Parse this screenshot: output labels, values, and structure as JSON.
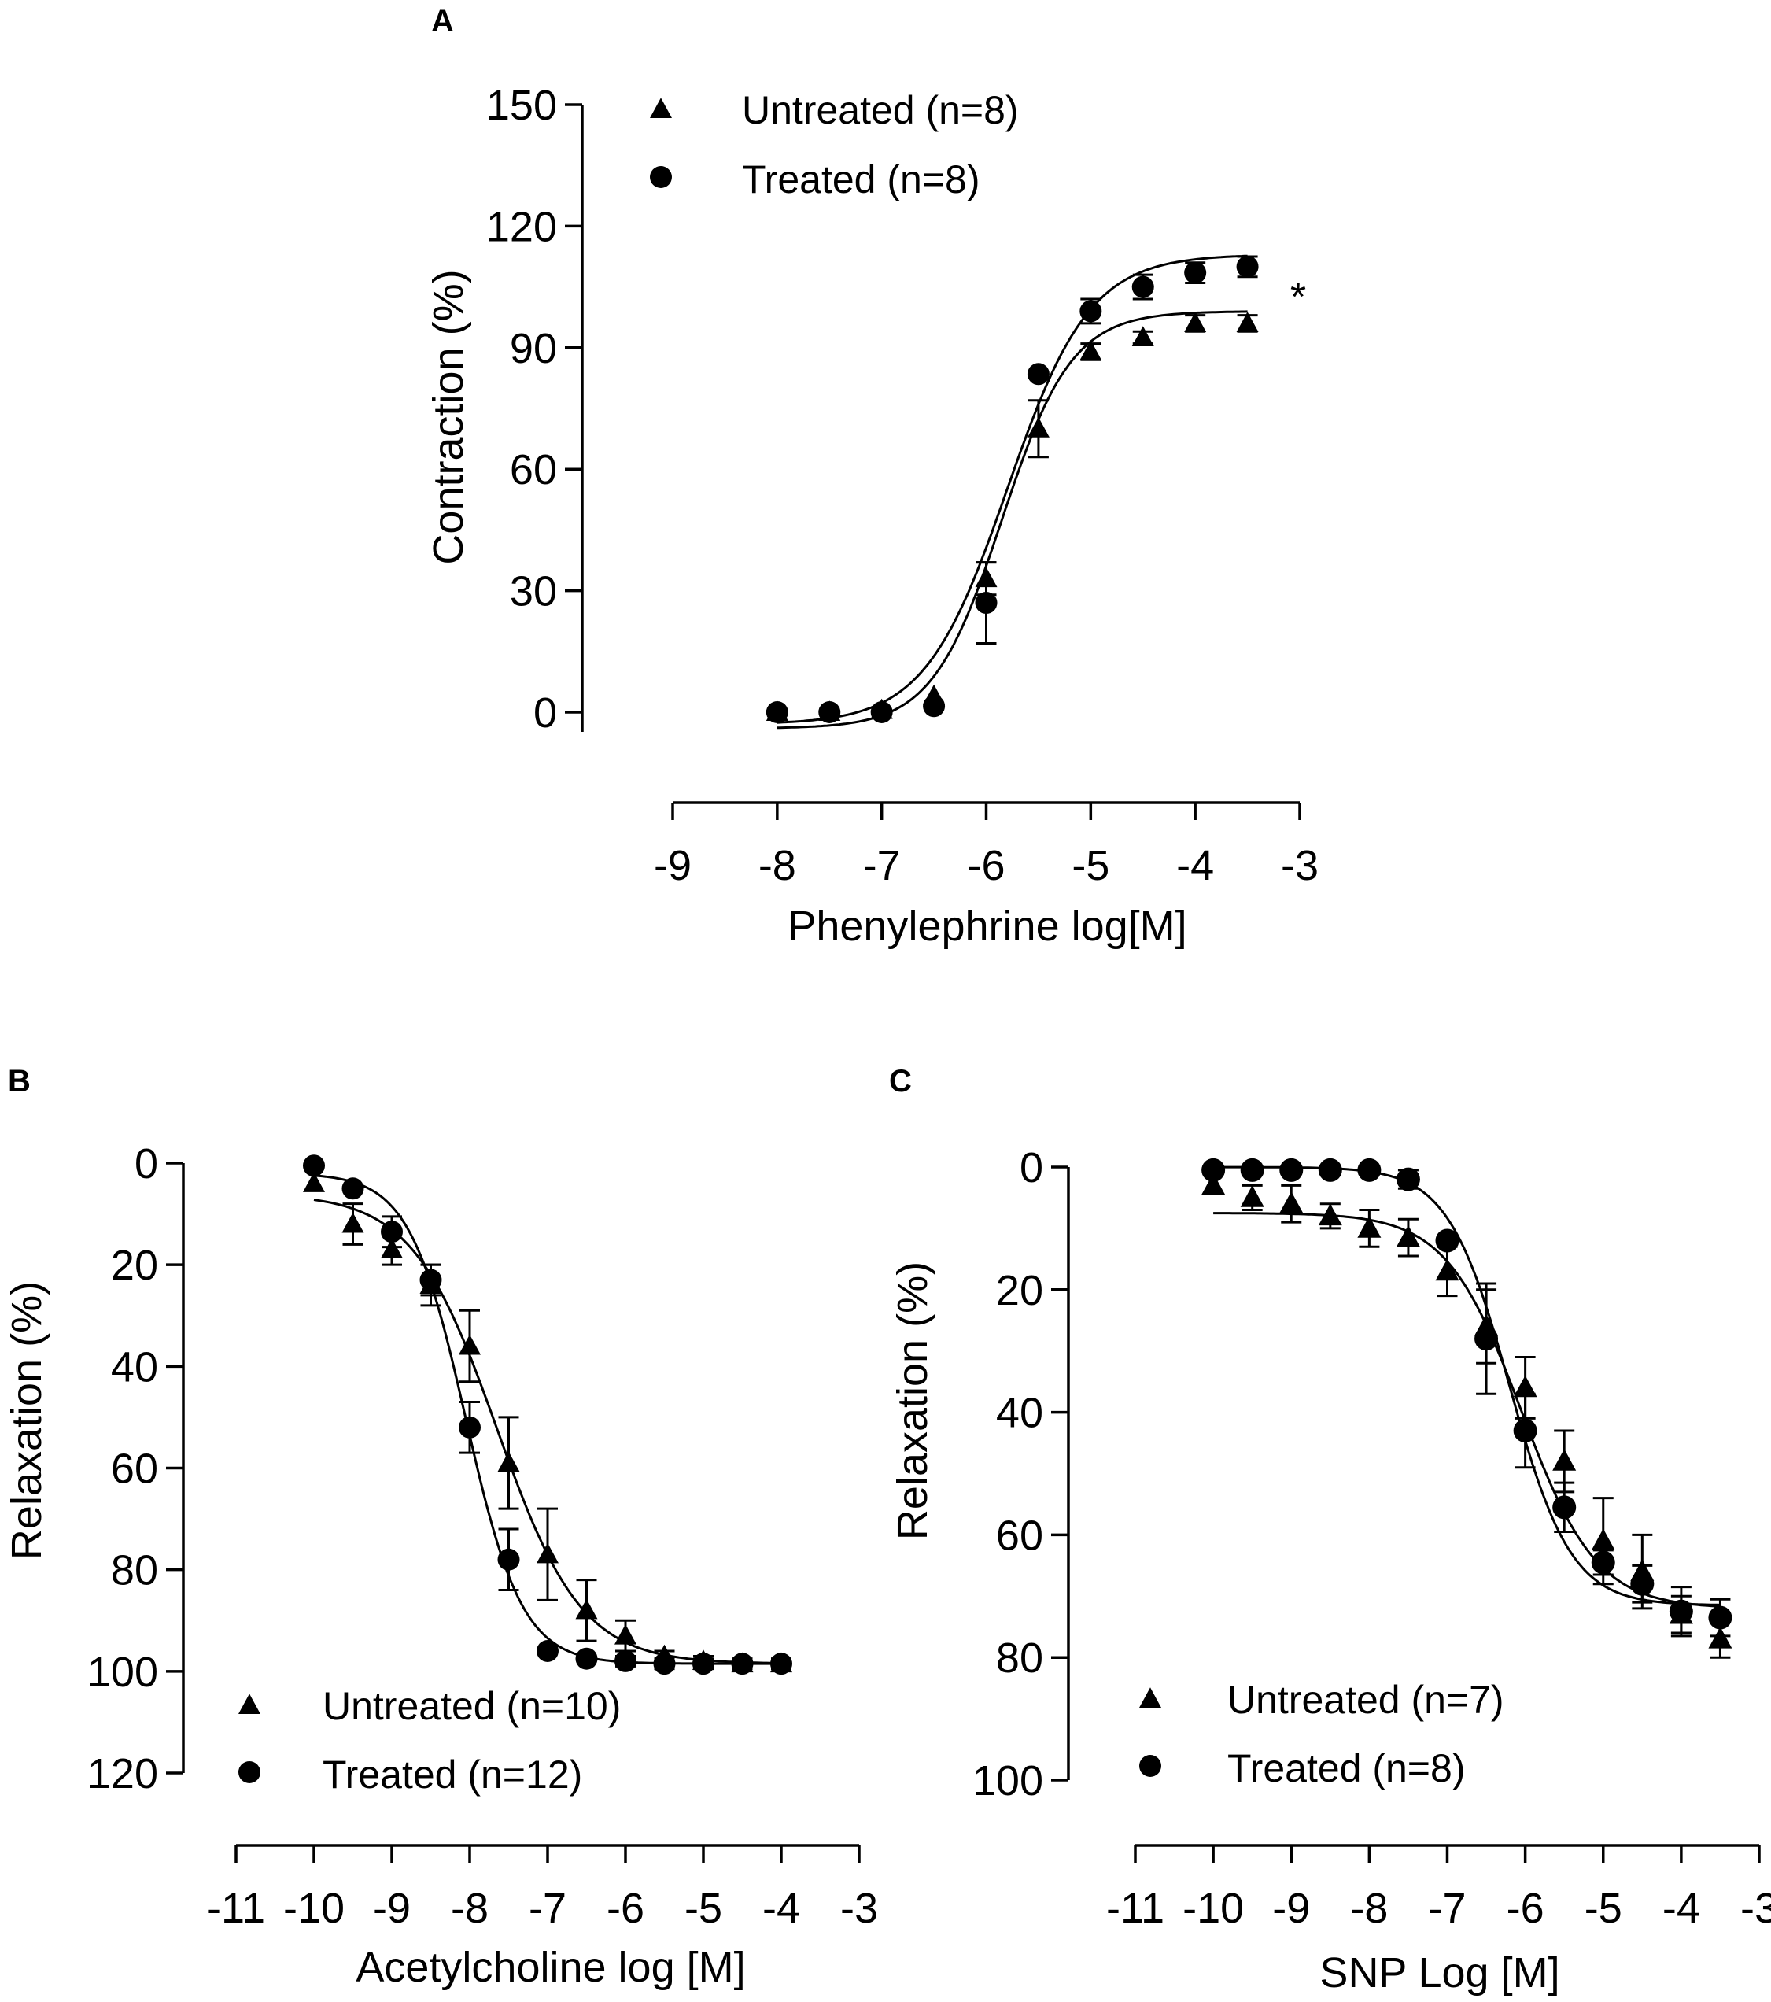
{
  "chart_data": [
    {
      "id": "A",
      "type": "scatter",
      "panel_label": "A",
      "xlabel": "Phenylephrine log[M]",
      "ylabel": "Contraction (%)",
      "xlim": [
        -9,
        -3
      ],
      "ylim": [
        0,
        150
      ],
      "y_inverted": false,
      "x_ticks": [
        -9,
        -8,
        -7,
        -6,
        -5,
        -4,
        -3
      ],
      "x_tick_labels": [
        "-9",
        "-8",
        "-7",
        "-6",
        "-5",
        "-4",
        "-3"
      ],
      "y_ticks": [
        0,
        30,
        60,
        90,
        120,
        150
      ],
      "y_tick_labels": [
        "0",
        "30",
        "60",
        "90",
        "120",
        "150"
      ],
      "annotation": "*",
      "legend": [
        "Untreated (n=8)",
        "Treated (n=8)"
      ],
      "series": [
        {
          "name": "Untreated (n=8)",
          "marker": "triangle",
          "x": [
            -8,
            -7.5,
            -7,
            -6.5,
            -6,
            -5.5,
            -5,
            -4.5,
            -4,
            -3.5
          ],
          "y": [
            0,
            0,
            0.5,
            4,
            33,
            70,
            89,
            92.5,
            96,
            96
          ],
          "err": [
            0,
            0,
            0,
            0,
            4,
            7,
            2,
            1.5,
            2,
            2
          ],
          "fit": {
            "bottom": -4,
            "top": 99,
            "logEC50": -5.85,
            "hill": 1.3
          }
        },
        {
          "name": "Treated (n=8)",
          "marker": "circle",
          "x": [
            -8,
            -7.5,
            -7,
            -6.5,
            -6,
            -5.5,
            -5,
            -4.5,
            -4,
            -3.5
          ],
          "y": [
            0,
            0,
            0,
            1.5,
            27,
            83.5,
            99,
            105,
            108.5,
            110
          ],
          "err": [
            0,
            0,
            0,
            0,
            10,
            0,
            3,
            3,
            2.5,
            2.5
          ],
          "fit": {
            "bottom": -3,
            "top": 113,
            "logEC50": -5.8,
            "hill": 1.1
          }
        }
      ]
    },
    {
      "id": "B",
      "type": "scatter",
      "panel_label": "B",
      "xlabel": "Acetylcholine log [M]",
      "ylabel": "Relaxation (%)",
      "xlim": [
        -11,
        -3
      ],
      "ylim": [
        0,
        120
      ],
      "y_inverted": true,
      "x_ticks": [
        -11,
        -10,
        -9,
        -8,
        -7,
        -6,
        -5,
        -4,
        -3
      ],
      "x_tick_labels": [
        "-11",
        "-10",
        "-9",
        "-8",
        "-7",
        "-6",
        "-5",
        "-4",
        "-3"
      ],
      "y_ticks": [
        0,
        20,
        40,
        60,
        80,
        100,
        120
      ],
      "y_tick_labels": [
        "0",
        "20",
        "40",
        "60",
        "80",
        "100",
        "120"
      ],
      "legend": [
        "Untreated (n=10)",
        "Treated (n=12)"
      ],
      "series": [
        {
          "name": "Untreated (n=10)",
          "marker": "triangle",
          "x": [
            -10,
            -9.5,
            -9,
            -8.5,
            -8,
            -7.5,
            -7,
            -6.5,
            -6,
            -5.5,
            -5,
            -4.5,
            -4
          ],
          "y": [
            4,
            12,
            17,
            24,
            36,
            59,
            77,
            88,
            93,
            97,
            98,
            98.5,
            98.5
          ],
          "err": [
            0,
            4,
            3,
            4,
            7,
            9,
            9,
            6,
            3,
            1,
            1,
            1,
            1
          ],
          "fit": {
            "bottom": 6,
            "top": 98.5,
            "logEC50": -7.65,
            "hill": 0.8
          }
        },
        {
          "name": "Treated (n=12)",
          "marker": "circle",
          "x": [
            -10,
            -9.5,
            -9,
            -8.5,
            -8,
            -7.5,
            -7,
            -6.5,
            -6,
            -5.5,
            -5,
            -4.5,
            -4
          ],
          "y": [
            0.5,
            5,
            13.5,
            23,
            52,
            78,
            96,
            97.5,
            98,
            98.5,
            98.5,
            98.5,
            98.5
          ],
          "err": [
            0,
            0,
            3,
            3,
            5,
            6,
            0,
            0,
            1,
            1,
            1,
            1,
            1
          ],
          "fit": {
            "bottom": 2,
            "top": 98.5,
            "logEC50": -8.05,
            "hill": 1.2
          }
        }
      ]
    },
    {
      "id": "C",
      "type": "scatter",
      "panel_label": "C",
      "xlabel": "SNP Log [M]",
      "ylabel": "Relaxation (%)",
      "xlim": [
        -11,
        -3
      ],
      "ylim": [
        0,
        100
      ],
      "y_inverted": true,
      "x_ticks": [
        -11,
        -10,
        -9,
        -8,
        -7,
        -6,
        -5,
        -4,
        -3
      ],
      "x_tick_labels": [
        "-11",
        "-10",
        "-9",
        "-8",
        "-7",
        "-6",
        "-5",
        "-4",
        "-3"
      ],
      "y_ticks": [
        0,
        20,
        40,
        60,
        80,
        100
      ],
      "y_tick_labels": [
        "0",
        "20",
        "40",
        "60",
        "80",
        "100"
      ],
      "legend": [
        "Untreated (n=7)",
        "Treated (n=8)"
      ],
      "series": [
        {
          "name": "Untreated (n=7)",
          "marker": "triangle",
          "x": [
            -10,
            -9.5,
            -9,
            -8.5,
            -8,
            -7.5,
            -7,
            -6.5,
            -6,
            -5.5,
            -5,
            -4.5,
            -4,
            -3.5
          ],
          "y": [
            3,
            5,
            6,
            8,
            10,
            11.5,
            17,
            26,
            36,
            48,
            61,
            66,
            73,
            77
          ],
          "err": [
            0,
            2,
            3,
            2,
            3,
            3,
            4,
            6,
            5,
            5,
            7,
            6,
            3,
            3
          ],
          "fit": {
            "bottom": 7.5,
            "top": 72,
            "logEC50": -6.05,
            "hill": 0.9
          }
        },
        {
          "name": "Treated (n=8)",
          "marker": "circle",
          "x": [
            -10,
            -9.5,
            -9,
            -8.5,
            -8,
            -7.5,
            -7,
            -6.5,
            -6,
            -5.5,
            -5,
            -4.5,
            -4,
            -3.5
          ],
          "y": [
            0.5,
            0.5,
            0.5,
            0.5,
            0.5,
            2,
            12,
            28,
            43,
            55.5,
            64.5,
            68,
            72.5,
            73.5
          ],
          "err": [
            0,
            0,
            0,
            0,
            0,
            1.5,
            0,
            9,
            6,
            4,
            2,
            3,
            4,
            3
          ],
          "fit": {
            "bottom": 0,
            "top": 71.5,
            "logEC50": -6.2,
            "hill": 1.1
          }
        }
      ]
    }
  ]
}
